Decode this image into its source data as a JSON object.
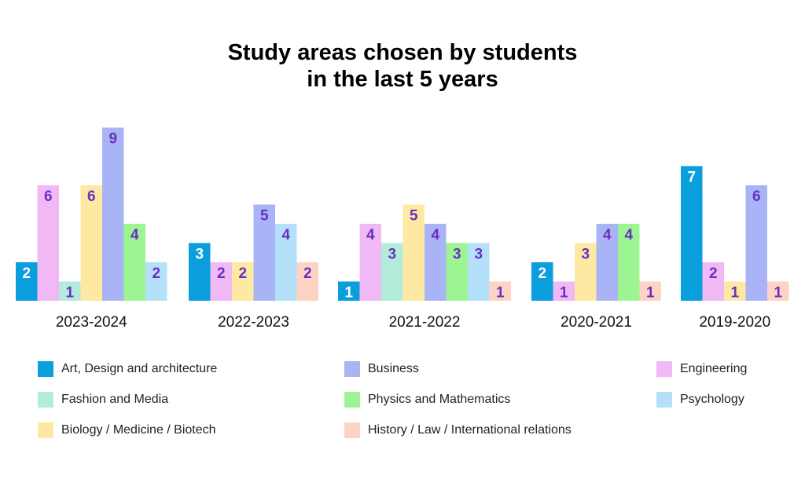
{
  "chart_data": {
    "type": "bar",
    "title_lines": [
      "Study areas chosen by students",
      "in the last 5 years"
    ],
    "xlabel": "",
    "ylabel": "",
    "ylim": [
      0,
      9
    ],
    "grid": false,
    "legend_position": "bottom",
    "series": [
      {
        "name": "Art, Design and architecture",
        "color": "#0a9fdc"
      },
      {
        "name": "Business",
        "color": "#a8b4f5"
      },
      {
        "name": "Engineering",
        "color": "#f0b8f5"
      },
      {
        "name": "Fashion and Media",
        "color": "#b4ecdc"
      },
      {
        "name": "Physics and Mathematics",
        "color": "#9cf592"
      },
      {
        "name": "Psychology",
        "color": "#b4e0fa"
      },
      {
        "name": "Biology / Medicine / Biotech",
        "color": "#fde9a2"
      },
      {
        "name": "History / Law / International relations",
        "color": "#fdd4c4"
      }
    ],
    "groups": [
      {
        "label": "2023-2024",
        "bars": [
          {
            "series": "Art, Design and architecture",
            "value": 2
          },
          {
            "series": "Engineering",
            "value": 6
          },
          {
            "series": "Fashion and Media",
            "value": 1
          },
          {
            "series": "Biology / Medicine / Biotech",
            "value": 6
          },
          {
            "series": "Business",
            "value": 9
          },
          {
            "series": "Physics and Mathematics",
            "value": 4
          },
          {
            "series": "Psychology",
            "value": 2
          }
        ]
      },
      {
        "label": "2022-2023",
        "bars": [
          {
            "series": "Art, Design and architecture",
            "value": 3
          },
          {
            "series": "Engineering",
            "value": 2
          },
          {
            "series": "Biology / Medicine / Biotech",
            "value": 2
          },
          {
            "series": "Business",
            "value": 5
          },
          {
            "series": "Psychology",
            "value": 4
          },
          {
            "series": "History / Law / International relations",
            "value": 2
          }
        ]
      },
      {
        "label": "2021-2022",
        "bars": [
          {
            "series": "Art, Design and architecture",
            "value": 1
          },
          {
            "series": "Engineering",
            "value": 4
          },
          {
            "series": "Fashion and Media",
            "value": 3
          },
          {
            "series": "Biology / Medicine / Biotech",
            "value": 5
          },
          {
            "series": "Business",
            "value": 4
          },
          {
            "series": "Physics and Mathematics",
            "value": 3
          },
          {
            "series": "Psychology",
            "value": 3
          },
          {
            "series": "History / Law / International relations",
            "value": 1
          }
        ]
      },
      {
        "label": "2020-2021",
        "bars": [
          {
            "series": "Art, Design and architecture",
            "value": 2
          },
          {
            "series": "Engineering",
            "value": 1
          },
          {
            "series": "Biology / Medicine / Biotech",
            "value": 3
          },
          {
            "series": "Business",
            "value": 4
          },
          {
            "series": "Physics and Mathematics",
            "value": 4
          },
          {
            "series": "History / Law / International relations",
            "value": 1
          }
        ]
      },
      {
        "label": "2019-2020",
        "bars": [
          {
            "series": "Art, Design and architecture",
            "value": 7
          },
          {
            "series": "Engineering",
            "value": 2
          },
          {
            "series": "Biology / Medicine / Biotech",
            "value": 1
          },
          {
            "series": "Business",
            "value": 6
          },
          {
            "series": "History / Law / International relations",
            "value": 1
          }
        ]
      }
    ],
    "value_label_colors": {
      "on_dark": "#ffffff",
      "on_light": "#6a2fc0"
    },
    "dark_series": [
      "Art, Design and architecture"
    ]
  }
}
